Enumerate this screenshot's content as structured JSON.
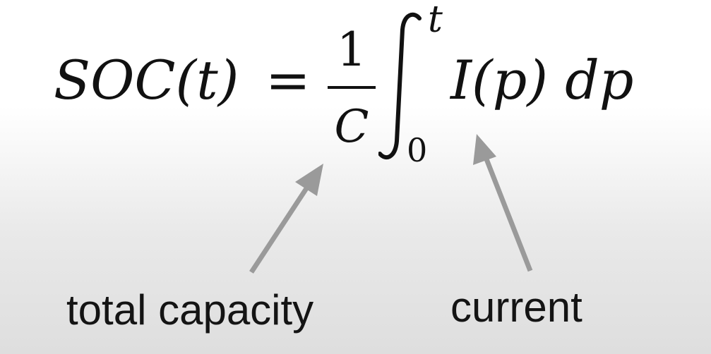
{
  "equation": {
    "lhs": "SOC(t)",
    "equals": "=",
    "fraction_numerator": "1",
    "fraction_denominator": "C",
    "integral_symbol": "∫",
    "upper_limit": "t",
    "lower_limit": "0",
    "integrand": "I(p) dp"
  },
  "annotations": {
    "capacity_label": "total capacity",
    "current_label": "current"
  },
  "colors": {
    "text": "#111111",
    "arrow": "#9a9a9a",
    "background_top": "#ffffff",
    "background_bottom": "#dedede"
  }
}
